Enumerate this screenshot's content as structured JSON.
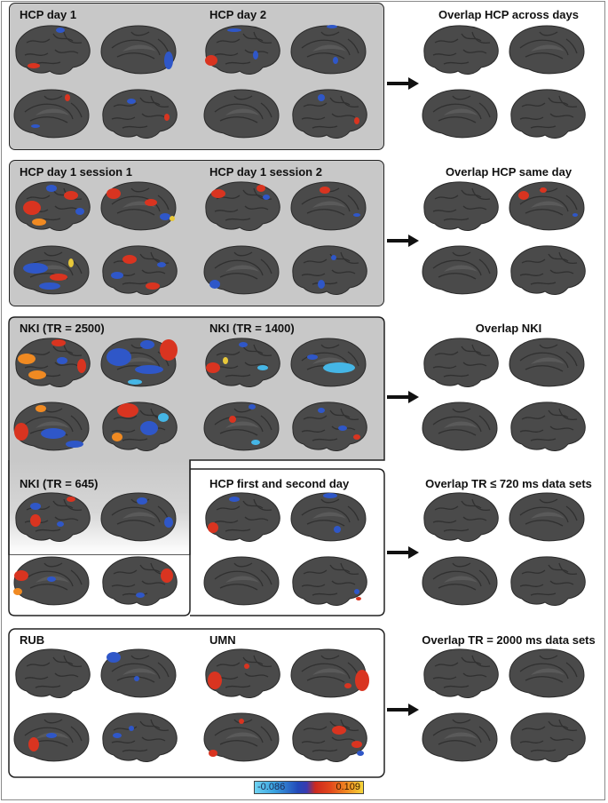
{
  "panels": {
    "hcp_days": {
      "left_label": "HCP day 1",
      "right_label": "HCP day 2",
      "overlap_label": "Overlap HCP across days"
    },
    "hcp_sessions": {
      "left_label": "HCP day 1 session 1",
      "right_label": "HCP day 1 session 2",
      "overlap_label": "Overlap HCP same day"
    },
    "nki": {
      "left_label": "NKI (TR = 2500)",
      "right_label": "NKI (TR = 1400)",
      "overlap_label": "Overlap NKI"
    },
    "short_tr": {
      "left_label": "NKI (TR = 645)",
      "right_label": "HCP first and second day",
      "overlap_label": "Overlap TR ≤ 720 ms data sets"
    },
    "long_tr": {
      "left_label": "RUB",
      "right_label": "UMN",
      "overlap_label": "Overlap TR = 2000 ms data sets"
    }
  },
  "colorbar": {
    "min_label": "-0.086",
    "max_label": "0.109"
  },
  "colors": {
    "negative": "#2f57c8",
    "positive": "#d93420",
    "brain": "#4a4a4a"
  }
}
